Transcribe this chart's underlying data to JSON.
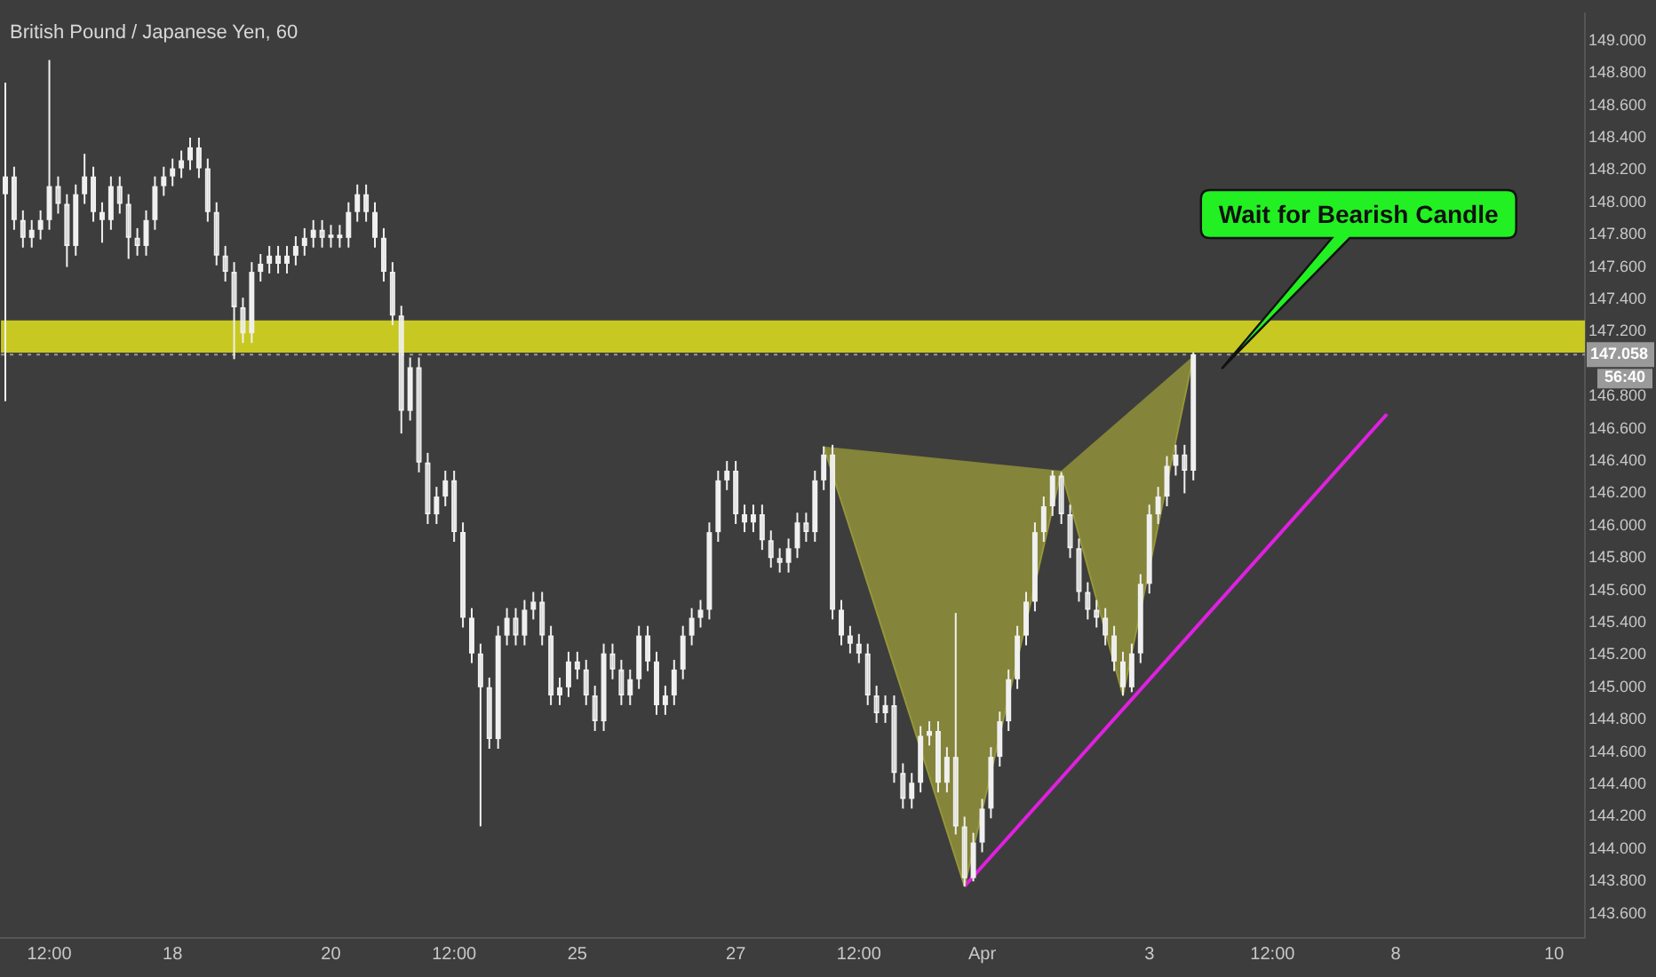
{
  "chart_data": {
    "type": "candlestick",
    "title": "British Pound / Japanese Yen, 60",
    "categories": [
      null,
      null,
      null,
      null,
      null,
      "12:00",
      null,
      null,
      null,
      null,
      null,
      null,
      null,
      null,
      null,
      null,
      null,
      null,
      null,
      "18",
      null,
      null,
      null,
      null,
      null,
      null,
      null,
      null,
      null,
      null,
      null,
      null,
      null,
      null,
      null,
      null,
      null,
      "20",
      null,
      null,
      null,
      null,
      null,
      null,
      null,
      null,
      null,
      null,
      null,
      null,
      null,
      "12:00",
      null,
      null,
      null,
      null,
      null,
      null,
      null,
      null,
      null,
      null,
      null,
      null,
      null,
      "25",
      null,
      null,
      null,
      null,
      null,
      null,
      null,
      null,
      null,
      null,
      null,
      null,
      null,
      null,
      null,
      null,
      null,
      "27",
      null,
      null,
      null,
      null,
      null,
      null,
      null,
      null,
      null,
      null,
      null,
      null,
      null,
      "12:00",
      null,
      null,
      null,
      null,
      null,
      null,
      null,
      null,
      null,
      null,
      null,
      null,
      null,
      "Apr",
      null,
      null,
      null,
      null,
      null,
      null,
      null,
      null,
      null,
      null,
      null,
      null,
      null,
      null,
      null,
      null,
      null,
      null,
      "3",
      null,
      null,
      null,
      null,
      null,
      null,
      null,
      null,
      null,
      null,
      null,
      null,
      null,
      "12:00",
      null,
      null,
      null,
      null,
      null,
      null,
      null,
      null,
      null,
      null,
      null,
      null,
      null,
      "8",
      null,
      null,
      null,
      null,
      null,
      null,
      null,
      null,
      null,
      null,
      null,
      null,
      null,
      null,
      null,
      null,
      null,
      "10",
      null,
      null,
      null
    ],
    "ylim": [
      143.45,
      149.17
    ],
    "yticks": [
      {
        "value": 143.6,
        "label": "143.600"
      },
      {
        "value": 143.8,
        "label": "143.800"
      },
      {
        "value": 144,
        "label": "144.000"
      },
      {
        "value": 144.2,
        "label": "144.200"
      },
      {
        "value": 144.4,
        "label": "144.400"
      },
      {
        "value": 144.6,
        "label": "144.600"
      },
      {
        "value": 144.8,
        "label": "144.800"
      },
      {
        "value": 145,
        "label": "145.000"
      },
      {
        "value": 145.2,
        "label": "145.200"
      },
      {
        "value": 145.4,
        "label": "145.400"
      },
      {
        "value": 145.6,
        "label": "145.600"
      },
      {
        "value": 145.8,
        "label": "145.800"
      },
      {
        "value": 146,
        "label": "146.000"
      },
      {
        "value": 146.2,
        "label": "146.200"
      },
      {
        "value": 146.4,
        "label": "146.400"
      },
      {
        "value": 146.6,
        "label": "146.600"
      },
      {
        "value": 146.8,
        "label": "146.800"
      },
      {
        "value": 147.2,
        "label": "147.200"
      },
      {
        "value": 147.4,
        "label": "147.400"
      },
      {
        "value": 147.6,
        "label": "147.600"
      },
      {
        "value": 147.8,
        "label": "147.800"
      },
      {
        "value": 148,
        "label": "148.000"
      },
      {
        "value": 148.2,
        "label": "148.200"
      },
      {
        "value": 148.4,
        "label": "148.400"
      },
      {
        "value": 148.6,
        "label": "148.600"
      },
      {
        "value": 148.8,
        "label": "148.800"
      },
      {
        "value": 149,
        "label": "149.000"
      }
    ],
    "grid": false,
    "legend": false,
    "ref_lines": [
      {
        "axis": "y",
        "value": 147.058,
        "label": "147.058",
        "color": "#9a9a9a",
        "line_style": "dotted"
      }
    ],
    "annotations": [
      "56:40",
      "Wait for Bearish Candle"
    ],
    "bands": [
      {
        "axis": "y",
        "from": 147.07,
        "to": 147.27,
        "color": "#c8c822"
      }
    ],
    "series": [
      {
        "type": "area",
        "color": "#96963a",
        "values": [
          null,
          null,
          null,
          null,
          null,
          null,
          null,
          null,
          null,
          null,
          null,
          null,
          null,
          null,
          null,
          null,
          null,
          null,
          null,
          null,
          null,
          null,
          null,
          null,
          null,
          null,
          null,
          null,
          null,
          null,
          null,
          null,
          null,
          null,
          null,
          null,
          null,
          null,
          null,
          null,
          null,
          null,
          null,
          null,
          null,
          null,
          null,
          null,
          null,
          null,
          null,
          null,
          null,
          null,
          null,
          null,
          null,
          null,
          null,
          null,
          null,
          null,
          null,
          null,
          null,
          null,
          null,
          null,
          null,
          null,
          null,
          null,
          null,
          null,
          null,
          null,
          null,
          null,
          null,
          null,
          null,
          null,
          null,
          null,
          null,
          null,
          null,
          null,
          null,
          null,
          null,
          null,
          null,
          146.49,
          null,
          null,
          null,
          null,
          null,
          null,
          null,
          null,
          null,
          null,
          null,
          null,
          null,
          null,
          null,
          143.77,
          null,
          null,
          null,
          null,
          null,
          null,
          null,
          null,
          null,
          null,
          146.34,
          null,
          null,
          null,
          null,
          null,
          null,
          null,
          null,
          null,
          null,
          null,
          null,
          null,
          null,
          null,
          null,
          null,
          null,
          null,
          null,
          null,
          null,
          null,
          null,
          null,
          null,
          null,
          null,
          null,
          null,
          null,
          null,
          null,
          null,
          null,
          null,
          null,
          null,
          null,
          null,
          null,
          null,
          null,
          null,
          null,
          null,
          null,
          null,
          null,
          null,
          null,
          null,
          null,
          null,
          null,
          null,
          null,
          null,
          null
        ]
      },
      {
        "type": "area",
        "color": "#96963a",
        "values": [
          null,
          null,
          null,
          null,
          null,
          null,
          null,
          null,
          null,
          null,
          null,
          null,
          null,
          null,
          null,
          null,
          null,
          null,
          null,
          null,
          null,
          null,
          null,
          null,
          null,
          null,
          null,
          null,
          null,
          null,
          null,
          null,
          null,
          null,
          null,
          null,
          null,
          null,
          null,
          null,
          null,
          null,
          null,
          null,
          null,
          null,
          null,
          null,
          null,
          null,
          null,
          null,
          null,
          null,
          null,
          null,
          null,
          null,
          null,
          null,
          null,
          null,
          null,
          null,
          null,
          null,
          null,
          null,
          null,
          null,
          null,
          null,
          null,
          null,
          null,
          null,
          null,
          null,
          null,
          null,
          null,
          null,
          null,
          null,
          null,
          null,
          null,
          null,
          null,
          null,
          null,
          null,
          null,
          null,
          null,
          null,
          null,
          null,
          null,
          null,
          null,
          null,
          null,
          null,
          null,
          null,
          null,
          null,
          null,
          null,
          null,
          null,
          null,
          null,
          null,
          null,
          null,
          null,
          null,
          null,
          146.34,
          null,
          null,
          null,
          null,
          null,
          null,
          144.95,
          null,
          null,
          null,
          null,
          null,
          null,
          null,
          147.05,
          null,
          null,
          null,
          null,
          null,
          null,
          null,
          null,
          null,
          null,
          null,
          null,
          null,
          null,
          null,
          null,
          null,
          null,
          null,
          null,
          null,
          null,
          null,
          null,
          null,
          null,
          null,
          null,
          null,
          null,
          null,
          null,
          null,
          null,
          null,
          null,
          null,
          null,
          null,
          null,
          null,
          null,
          null,
          null
        ]
      },
      {
        "type": "line",
        "color": "#e020e0",
        "values": [
          null,
          null,
          null,
          null,
          null,
          null,
          null,
          null,
          null,
          null,
          null,
          null,
          null,
          null,
          null,
          null,
          null,
          null,
          null,
          null,
          null,
          null,
          null,
          null,
          null,
          null,
          null,
          null,
          null,
          null,
          null,
          null,
          null,
          null,
          null,
          null,
          null,
          null,
          null,
          null,
          null,
          null,
          null,
          null,
          null,
          null,
          null,
          null,
          null,
          null,
          null,
          null,
          null,
          null,
          null,
          null,
          null,
          null,
          null,
          null,
          null,
          null,
          null,
          null,
          null,
          null,
          null,
          null,
          null,
          null,
          null,
          null,
          null,
          null,
          null,
          null,
          null,
          null,
          null,
          null,
          null,
          null,
          null,
          null,
          null,
          null,
          null,
          null,
          null,
          null,
          null,
          null,
          null,
          null,
          null,
          null,
          null,
          null,
          null,
          null,
          null,
          null,
          null,
          null,
          null,
          null,
          null,
          null,
          null,
          143.77,
          null,
          null,
          null,
          null,
          null,
          null,
          null,
          null,
          null,
          null,
          null,
          null,
          null,
          null,
          null,
          null,
          null,
          null,
          null,
          null,
          null,
          null,
          null,
          null,
          null,
          null,
          null,
          null,
          null,
          null,
          null,
          null,
          null,
          null,
          null,
          null,
          null,
          null,
          null,
          null,
          null,
          null,
          null,
          null,
          null,
          null,
          null,
          146.69,
          null,
          null,
          null,
          null,
          null,
          null,
          null,
          null,
          null,
          null,
          null,
          null,
          null,
          null,
          null,
          null,
          null,
          null,
          null,
          null,
          null,
          null
        ]
      },
      {
        "color": "#f0f0f0",
        "ohlc": [
          [
            148.05,
            148.74,
            146.77,
            148.16
          ],
          [
            148.16,
            148.22,
            147.83,
            147.89
          ],
          [
            147.89,
            147.95,
            147.72,
            147.78
          ],
          [
            147.78,
            147.89,
            147.72,
            147.83
          ],
          [
            147.83,
            147.95,
            147.77,
            147.89
          ],
          [
            147.89,
            148.88,
            147.83,
            148.1
          ],
          [
            148.1,
            148.16,
            147.93,
            147.99
          ],
          [
            147.99,
            148.05,
            147.6,
            147.73
          ],
          [
            147.73,
            148.11,
            147.67,
            148.05
          ],
          [
            148.05,
            148.3,
            147.99,
            148.16
          ],
          [
            148.16,
            148.22,
            147.88,
            147.94
          ],
          [
            147.94,
            148.0,
            147.75,
            147.89
          ],
          [
            147.89,
            148.16,
            147.83,
            148.1
          ],
          [
            148.1,
            148.16,
            147.93,
            147.99
          ],
          [
            147.99,
            148.05,
            147.65,
            147.78
          ],
          [
            147.78,
            147.84,
            147.67,
            147.73
          ],
          [
            147.73,
            147.95,
            147.67,
            147.89
          ],
          [
            147.89,
            148.16,
            147.83,
            148.1
          ],
          [
            148.1,
            148.22,
            148.04,
            148.16
          ],
          [
            148.16,
            148.27,
            148.1,
            148.21
          ],
          [
            148.21,
            148.32,
            148.15,
            148.26
          ],
          [
            148.26,
            148.4,
            148.2,
            148.34
          ],
          [
            148.34,
            148.4,
            148.15,
            148.21
          ],
          [
            148.21,
            148.27,
            147.88,
            147.94
          ],
          [
            147.94,
            148.0,
            147.61,
            147.67
          ],
          [
            147.67,
            147.73,
            147.51,
            147.57
          ],
          [
            147.57,
            147.63,
            147.03,
            147.35
          ],
          [
            147.35,
            147.41,
            147.13,
            147.19
          ],
          [
            147.19,
            147.63,
            147.13,
            147.57
          ],
          [
            147.57,
            147.68,
            147.51,
            147.62
          ],
          [
            147.62,
            147.73,
            147.56,
            147.67
          ],
          [
            147.67,
            147.73,
            147.56,
            147.62
          ],
          [
            147.62,
            147.73,
            147.56,
            147.67
          ],
          [
            147.67,
            147.79,
            147.61,
            147.73
          ],
          [
            147.73,
            147.84,
            147.67,
            147.78
          ],
          [
            147.78,
            147.89,
            147.72,
            147.83
          ],
          [
            147.83,
            147.89,
            147.72,
            147.78
          ],
          [
            147.78,
            147.86,
            147.72,
            147.8
          ],
          [
            147.8,
            147.86,
            147.72,
            147.78
          ],
          [
            147.78,
            148.0,
            147.72,
            147.94
          ],
          [
            147.94,
            148.11,
            147.88,
            148.05
          ],
          [
            148.05,
            148.11,
            147.88,
            147.94
          ],
          [
            147.94,
            148.0,
            147.72,
            147.78
          ],
          [
            147.78,
            147.84,
            147.51,
            147.57
          ],
          [
            147.57,
            147.63,
            147.24,
            147.3
          ],
          [
            147.3,
            147.36,
            146.57,
            146.71
          ],
          [
            146.71,
            147.04,
            146.65,
            146.98
          ],
          [
            146.98,
            147.04,
            146.33,
            146.39
          ],
          [
            146.39,
            146.45,
            146.01,
            146.07
          ],
          [
            146.07,
            146.24,
            146.01,
            146.18
          ],
          [
            146.18,
            146.34,
            146.12,
            146.28
          ],
          [
            146.28,
            146.34,
            145.9,
            145.96
          ],
          [
            145.96,
            146.02,
            145.37,
            145.43
          ],
          [
            145.43,
            145.49,
            145.15,
            145.21
          ],
          [
            145.21,
            145.27,
            144.14,
            145.0
          ],
          [
            145.0,
            145.06,
            144.62,
            144.68
          ],
          [
            144.68,
            145.38,
            144.62,
            145.32
          ],
          [
            145.32,
            145.49,
            145.26,
            145.43
          ],
          [
            145.43,
            145.49,
            145.26,
            145.32
          ],
          [
            145.32,
            145.54,
            145.26,
            145.48
          ],
          [
            145.48,
            145.59,
            145.42,
            145.53
          ],
          [
            145.53,
            145.59,
            145.26,
            145.32
          ],
          [
            145.32,
            145.38,
            144.89,
            144.95
          ],
          [
            144.95,
            145.06,
            144.89,
            145.0
          ],
          [
            145.0,
            145.22,
            144.94,
            145.16
          ],
          [
            145.16,
            145.22,
            145.05,
            145.11
          ],
          [
            145.11,
            145.17,
            144.89,
            144.95
          ],
          [
            144.95,
            145.01,
            144.73,
            144.79
          ],
          [
            144.79,
            145.27,
            144.73,
            145.21
          ],
          [
            145.21,
            145.27,
            145.05,
            145.11
          ],
          [
            145.11,
            145.17,
            144.89,
            144.95
          ],
          [
            144.95,
            145.11,
            144.89,
            145.05
          ],
          [
            145.05,
            145.38,
            144.99,
            145.32
          ],
          [
            145.32,
            145.38,
            145.1,
            145.16
          ],
          [
            145.16,
            145.22,
            144.83,
            144.89
          ],
          [
            144.89,
            145.01,
            144.83,
            144.95
          ],
          [
            144.95,
            145.17,
            144.89,
            145.11
          ],
          [
            145.11,
            145.38,
            145.05,
            145.32
          ],
          [
            145.32,
            145.49,
            145.26,
            145.43
          ],
          [
            145.43,
            145.54,
            145.37,
            145.48
          ],
          [
            145.48,
            146.02,
            145.42,
            145.96
          ],
          [
            145.96,
            146.34,
            145.9,
            146.28
          ],
          [
            146.28,
            146.4,
            146.22,
            146.34
          ],
          [
            146.34,
            146.4,
            146.01,
            146.07
          ],
          [
            146.07,
            146.13,
            145.96,
            146.02
          ],
          [
            146.02,
            146.13,
            145.96,
            146.07
          ],
          [
            146.07,
            146.13,
            145.85,
            145.91
          ],
          [
            145.91,
            145.97,
            145.74,
            145.8
          ],
          [
            145.8,
            145.86,
            145.71,
            145.77
          ],
          [
            145.77,
            145.92,
            145.71,
            145.86
          ],
          [
            145.86,
            146.08,
            145.8,
            146.02
          ],
          [
            146.02,
            146.08,
            145.9,
            145.96
          ],
          [
            145.96,
            146.34,
            145.9,
            146.28
          ],
          [
            146.28,
            146.49,
            146.22,
            146.44
          ],
          [
            146.44,
            146.5,
            145.42,
            145.48
          ],
          [
            145.48,
            145.54,
            145.26,
            145.32
          ],
          [
            145.32,
            145.38,
            145.21,
            145.27
          ],
          [
            145.27,
            145.33,
            145.15,
            145.21
          ],
          [
            145.21,
            145.27,
            144.89,
            144.95
          ],
          [
            144.95,
            145.01,
            144.78,
            144.84
          ],
          [
            144.84,
            144.95,
            144.78,
            144.89
          ],
          [
            144.89,
            144.95,
            144.41,
            144.47
          ],
          [
            144.47,
            144.53,
            144.25,
            144.31
          ],
          [
            144.31,
            144.47,
            144.25,
            144.41
          ],
          [
            144.41,
            144.76,
            144.35,
            144.7
          ],
          [
            144.7,
            144.79,
            144.64,
            144.73
          ],
          [
            144.73,
            144.79,
            144.35,
            144.41
          ],
          [
            144.41,
            144.63,
            144.35,
            144.57
          ],
          [
            144.57,
            145.46,
            144.09,
            144.14
          ],
          [
            144.14,
            144.2,
            143.77,
            143.82
          ],
          [
            143.82,
            144.1,
            143.8,
            144.04
          ],
          [
            144.04,
            144.31,
            143.98,
            144.25
          ],
          [
            144.25,
            144.63,
            144.19,
            144.57
          ],
          [
            144.57,
            144.85,
            144.51,
            144.79
          ],
          [
            144.79,
            145.11,
            144.73,
            145.05
          ],
          [
            145.05,
            145.38,
            144.99,
            145.32
          ],
          [
            145.32,
            145.59,
            145.26,
            145.53
          ],
          [
            145.53,
            146.02,
            145.47,
            145.96
          ],
          [
            145.96,
            146.18,
            145.9,
            146.12
          ],
          [
            146.12,
            146.34,
            146.06,
            146.31
          ],
          [
            146.31,
            146.33,
            146.01,
            146.07
          ],
          [
            146.07,
            146.13,
            145.8,
            145.86
          ],
          [
            145.86,
            145.92,
            145.53,
            145.59
          ],
          [
            145.59,
            145.65,
            145.42,
            145.48
          ],
          [
            145.48,
            145.54,
            145.37,
            145.43
          ],
          [
            145.43,
            145.49,
            145.26,
            145.32
          ],
          [
            145.32,
            145.38,
            145.1,
            145.16
          ],
          [
            145.16,
            145.22,
            144.95,
            145.0
          ],
          [
            145.0,
            145.27,
            144.97,
            145.21
          ],
          [
            145.21,
            145.7,
            145.15,
            145.64
          ],
          [
            145.64,
            146.13,
            145.58,
            146.07
          ],
          [
            146.07,
            146.24,
            146.01,
            146.18
          ],
          [
            146.18,
            146.43,
            146.12,
            146.37
          ],
          [
            146.37,
            146.5,
            146.31,
            146.44
          ],
          [
            146.44,
            146.5,
            146.2,
            146.34
          ],
          [
            146.34,
            147.07,
            146.28,
            147.06
          ],
          null,
          null,
          null,
          null,
          null,
          null,
          null,
          null,
          null,
          null,
          null,
          null,
          null,
          null,
          null,
          null,
          null,
          null,
          null,
          null,
          null,
          null,
          null,
          null,
          null,
          null,
          null,
          null,
          null,
          null,
          null,
          null,
          null,
          null,
          null,
          null,
          null,
          null,
          null,
          null,
          null,
          null,
          null,
          null
        ]
      }
    ]
  }
}
